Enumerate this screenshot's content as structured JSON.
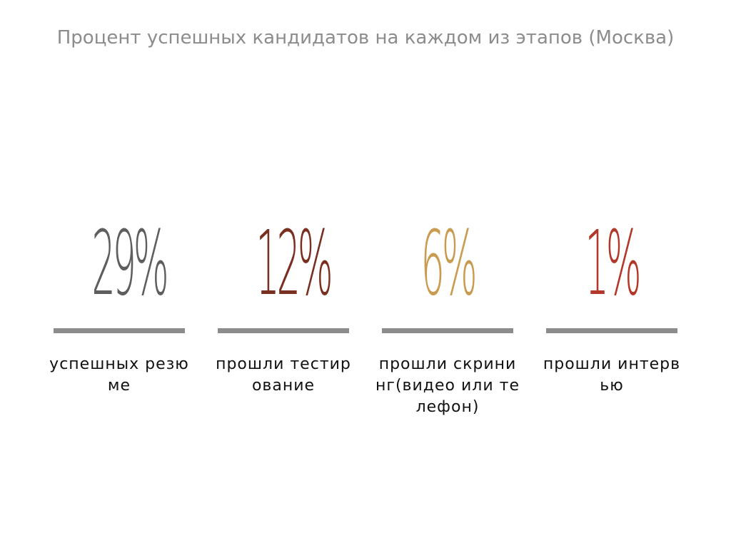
{
  "title": "Процент успешных кандидатов на каждом из этапов (Москва)",
  "colors": {
    "title": "#8c8c8c",
    "rule": "#8c8c8c",
    "label": "#111111",
    "stage_1": "#5e5e5e",
    "stage_2": "#7a3020",
    "stage_3": "#c99b4e",
    "stage_4": "#b2382a"
  },
  "stats": [
    {
      "value_text": "29%",
      "label": "успешных резюме",
      "color": "#5e5e5e"
    },
    {
      "value_text": "12%",
      "label": "прошли тестирование",
      "color": "#7a3020"
    },
    {
      "value_text": "6%",
      "label": "прошли скрининг(видео или телефон)",
      "color": "#c99b4e"
    },
    {
      "value_text": "1%",
      "label": "прошли интервью",
      "color": "#b2382a"
    }
  ],
  "chart_data": {
    "type": "table",
    "title": "Процент успешных кандидатов на каждом из этапов (Москва)",
    "categories": [
      "успешных резюме",
      "прошли тестирование",
      "прошли скрининг(видео или телефон)",
      "прошли интервью"
    ],
    "values": [
      29,
      12,
      6,
      1
    ],
    "unit": "%"
  }
}
